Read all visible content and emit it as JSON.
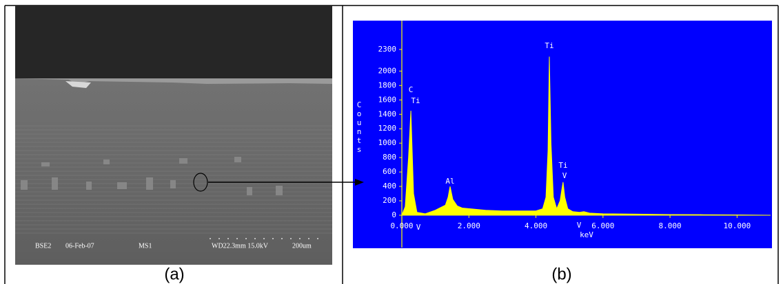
{
  "figure": {
    "sem": {
      "info": [
        "BSE2",
        "06-Feb-07",
        "MS1",
        "WD22.3mm 15.0kV",
        "200um"
      ]
    },
    "captions": [
      "(a)",
      "(b)"
    ]
  },
  "chart_data": {
    "type": "area",
    "ylabel": "Counts",
    "xlabel": "keV",
    "color": "#ffff00",
    "background": "#0000ff",
    "x": [
      0,
      0.1,
      0.2,
      0.27,
      0.35,
      0.45,
      0.7,
      1.0,
      1.3,
      1.38,
      1.44,
      1.52,
      1.65,
      1.8,
      2.5,
      3.0,
      3.5,
      4.0,
      4.2,
      4.3,
      4.36,
      4.4,
      4.45,
      4.52,
      4.62,
      4.72,
      4.78,
      4.81,
      4.86,
      4.95,
      5.1,
      5.3,
      5.43,
      5.6,
      6.0,
      7.0,
      8.0,
      9.0,
      10.0,
      11.0
    ],
    "values": [
      0,
      120,
      800,
      1450,
      300,
      40,
      20,
      70,
      140,
      250,
      400,
      220,
      130,
      100,
      70,
      60,
      60,
      60,
      90,
      250,
      900,
      2200,
      1000,
      250,
      90,
      200,
      380,
      460,
      250,
      90,
      50,
      40,
      50,
      30,
      20,
      15,
      10,
      8,
      5,
      0
    ],
    "annotations": [
      "C",
      "Ti",
      "V",
      "Al",
      "Ti",
      "Ti",
      "V",
      "V"
    ],
    "xlim": [
      0,
      11
    ],
    "ylim": [
      0,
      2700
    ],
    "xticks": [
      {
        "value": 0,
        "label": "0.000"
      },
      {
        "value": 2,
        "label": "2.000"
      },
      {
        "value": 4,
        "label": "4.000"
      },
      {
        "value": 6,
        "label": "6.000"
      },
      {
        "value": 8,
        "label": "8.000"
      },
      {
        "value": 10,
        "label": "10.000"
      }
    ],
    "yticks": [
      0,
      200,
      400,
      600,
      800,
      1000,
      1200,
      1400,
      1600,
      1800,
      2000,
      2300
    ]
  }
}
